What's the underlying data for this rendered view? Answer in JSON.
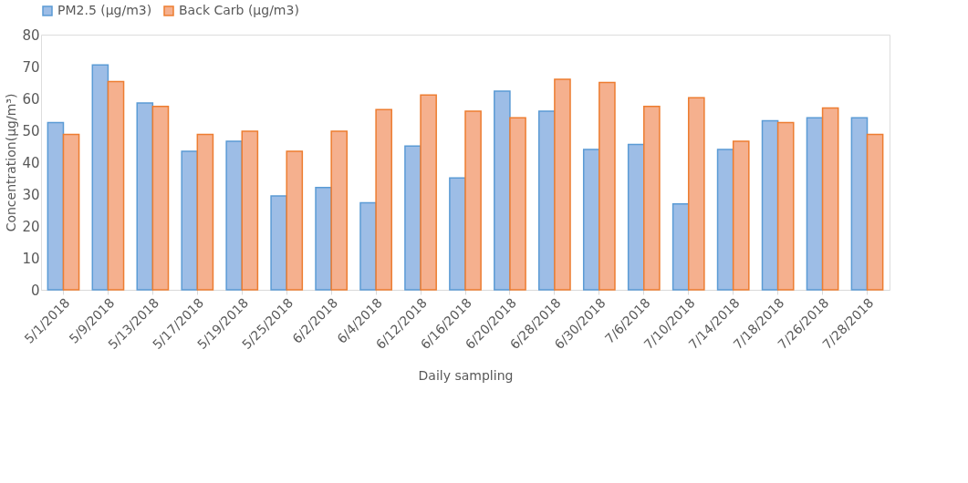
{
  "chart_data": {
    "type": "bar",
    "xlabel": "Daily sampling",
    "ylabel": "Concentration(µg/m³)",
    "categories": [
      "5/1/2018",
      "5/9/2018",
      "5/13/2018",
      "5/17/2018",
      "5/19/2018",
      "5/25/2018",
      "6/2/2018",
      "6/4/2018",
      "6/12/2018",
      "6/16/2018",
      "6/20/2018",
      "6/28/2018",
      "6/30/2018",
      "7/6/2018",
      "7/10/2018",
      "7/14/2018",
      "7/18/2018",
      "7/26/2018",
      "7/28/2018"
    ],
    "series": [
      {
        "name": "PM2.5 (µg/m3)",
        "color": "#9dbde6",
        "values": [
          52.4,
          70.5,
          58.6,
          43.4,
          46.6,
          29.4,
          32.1,
          27.3,
          45.1,
          35.1,
          62.3,
          56.0,
          44.0,
          45.6,
          26.9,
          44.0,
          53.0,
          53.9,
          53.9
        ]
      },
      {
        "name": "Back Carb (µg/m3)",
        "color": "#f5b08e",
        "values": [
          48.7,
          65.3,
          57.5,
          48.7,
          49.7,
          43.4,
          49.7,
          56.5,
          61.1,
          56.0,
          53.9,
          66.0,
          65.0,
          57.5,
          60.2,
          46.6,
          52.4,
          57.0,
          48.7
        ]
      }
    ],
    "ylim": [
      0,
      80
    ],
    "yticks": [
      0,
      10,
      20,
      30,
      40,
      50,
      60,
      70,
      80
    ],
    "grid": false,
    "legend": "top"
  }
}
